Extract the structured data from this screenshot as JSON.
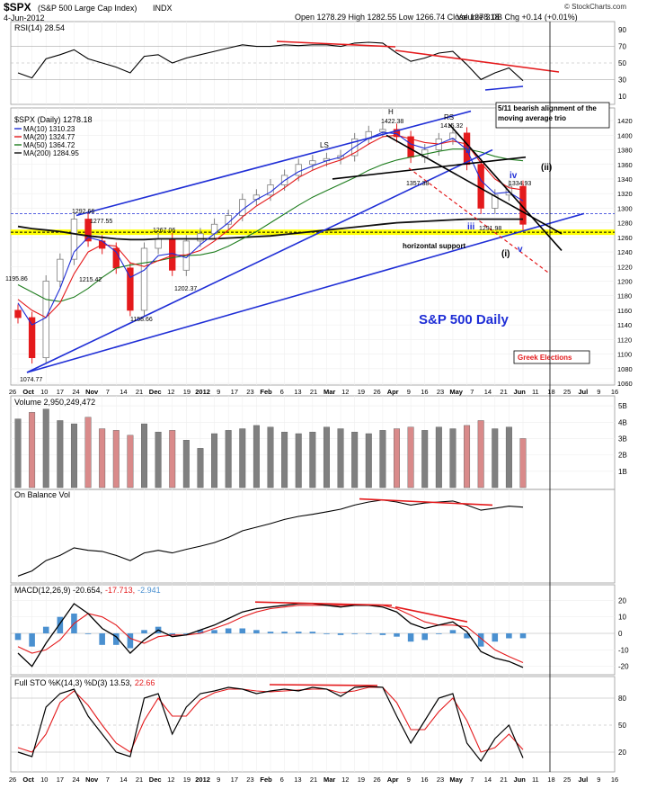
{
  "header": {
    "symbol": "$SPX",
    "name": "(S&P 500 Large Cap Index)",
    "exchange": "INDX",
    "date": "4-Jun-2012",
    "ohlc": "Open 1278.29  High 1282.55  Low 1266.74  Close 1278.18",
    "volume": "Volume 3.0B  Chg +0.14 (+0.01%)",
    "watermark": "© StockCharts.com"
  },
  "colors": {
    "up": "#7f7f7f",
    "down": "#e41a1c",
    "ma10": "#1f2ed6",
    "ma20": "#e41a1c",
    "ma50": "#1e7d1e",
    "ma200": "#111111",
    "trend_blue": "#1f2ed6",
    "support_yellow": "#ffff00",
    "vol_up": "#808080",
    "vol_down": "#d98a8a",
    "hist": "#4a90d0"
  },
  "rsi_panel": {
    "label": "RSI(14) 28.54",
    "ticks": [
      "90",
      "70",
      "50",
      "30",
      "10"
    ]
  },
  "price_panel": {
    "legend": {
      "title": "$SPX (Daily) 1278.18",
      "ma10": "MA(10) 1310.23",
      "ma20": "MA(20) 1324.77",
      "ma50": "MA(50) 1364.72",
      "ma200": "MA(200) 1284.95"
    },
    "yticks": [
      "1420",
      "1400",
      "1380",
      "1360",
      "1340",
      "1320",
      "1300",
      "1280",
      "1260",
      "1240",
      "1220",
      "1200",
      "1180",
      "1160",
      "1140",
      "1120",
      "1100",
      "1080",
      "1060"
    ],
    "annotations": {
      "p1074": "1074.77",
      "p1195": "1195.86",
      "p1292": "1292.66",
      "p1277": "1277.55",
      "p1215": "1215.42",
      "p1158": "1158.66",
      "p1267": "1267.06",
      "p1202": "1202.37",
      "p1422": "1422.38",
      "p1415": "1415.32",
      "p1357": "1357.38",
      "p1334": "1334.93",
      "p1291": "1291.98",
      "H": "H",
      "LS": "LS",
      "RS": "RS",
      "ii": "ii",
      "iii": "iii",
      "iv": "iv",
      "v": "v",
      "i_paren": "(i)",
      "ii_paren": "(ii)",
      "callout": "5/11 bearish alignment of the moving average trio",
      "horizontal_support": "horizontal support",
      "sp500": "S&P 500 Daily",
      "greek": "Greek Elections"
    },
    "xlabels": [
      "26",
      "Oct",
      "10",
      "17",
      "24",
      "Nov",
      "7",
      "14",
      "21",
      "Dec",
      "12",
      "19",
      "2012",
      "9",
      "17",
      "23",
      "Feb",
      "6",
      "13",
      "21",
      "Mar",
      "12",
      "19",
      "26",
      "Apr",
      "9",
      "16",
      "23",
      "May",
      "7",
      "14",
      "21",
      "Jun",
      "11",
      "18",
      "25",
      "Jul",
      "9",
      "16"
    ]
  },
  "volume_panel": {
    "label": "Volume 2,950,249,472",
    "ticks": [
      "5B",
      "4B",
      "3B",
      "2B",
      "1B"
    ]
  },
  "obv_panel": {
    "label": "On Balance Vol"
  },
  "macd_panel": {
    "label_prefix": "MACD(12,26,9) -20.654,",
    "label_signal": "-17.713,",
    "label_hist": "-2.941",
    "ticks": [
      "20",
      "10",
      "0",
      "-10",
      "-20"
    ]
  },
  "sto_panel": {
    "label_prefix": "Full STO %K(14,3) %D(3) 13.53,",
    "label_d": "22.66",
    "ticks": [
      "80",
      "50",
      "20"
    ]
  },
  "chart_data": {
    "type": "line",
    "title": "$SPX (S&P 500 Large Cap Index) Daily",
    "x": [
      "2011-09-26",
      "2011-10-03",
      "2011-10-10",
      "2011-10-17",
      "2011-10-24",
      "2011-10-31",
      "2011-11-07",
      "2011-11-14",
      "2011-11-21",
      "2011-11-28",
      "2011-12-05",
      "2011-12-12",
      "2011-12-19",
      "2011-12-27",
      "2012-01-03",
      "2012-01-09",
      "2012-01-17",
      "2012-01-23",
      "2012-01-30",
      "2012-02-06",
      "2012-02-13",
      "2012-02-21",
      "2012-02-27",
      "2012-03-05",
      "2012-03-12",
      "2012-03-19",
      "2012-03-26",
      "2012-04-02",
      "2012-04-09",
      "2012-04-16",
      "2012-04-23",
      "2012-04-30",
      "2012-05-07",
      "2012-05-14",
      "2012-05-21",
      "2012-05-29",
      "2012-06-04"
    ],
    "series": [
      {
        "name": "$SPX",
        "values": [
          1150,
          1095,
          1200,
          1230,
          1285,
          1255,
          1245,
          1218,
          1160,
          1245,
          1258,
          1215,
          1255,
          1265,
          1278,
          1290,
          1312,
          1318,
          1332,
          1345,
          1360,
          1365,
          1368,
          1372,
          1395,
          1405,
          1408,
          1398,
          1370,
          1380,
          1395,
          1403,
          1360,
          1300,
          1318,
          1330,
          1278
        ]
      },
      {
        "name": "MA(10)",
        "values": [
          1170,
          1140,
          1150,
          1190,
          1240,
          1260,
          1255,
          1240,
          1205,
          1215,
          1235,
          1238,
          1232,
          1250,
          1265,
          1280,
          1298,
          1312,
          1322,
          1338,
          1350,
          1358,
          1365,
          1370,
          1384,
          1396,
          1404,
          1402,
          1388,
          1382,
          1388,
          1396,
          1380,
          1338,
          1320,
          1322,
          1310
        ]
      },
      {
        "name": "MA(20)",
        "values": [
          1175,
          1160,
          1150,
          1170,
          1210,
          1240,
          1250,
          1248,
          1225,
          1220,
          1228,
          1235,
          1236,
          1242,
          1255,
          1270,
          1288,
          1303,
          1315,
          1328,
          1342,
          1352,
          1360,
          1366,
          1376,
          1388,
          1398,
          1400,
          1395,
          1390,
          1388,
          1392,
          1388,
          1362,
          1340,
          1328,
          1325
        ]
      },
      {
        "name": "MA(50)",
        "values": [
          1195,
          1185,
          1175,
          1172,
          1178,
          1190,
          1205,
          1218,
          1222,
          1225,
          1228,
          1232,
          1235,
          1236,
          1240,
          1248,
          1258,
          1268,
          1280,
          1292,
          1304,
          1315,
          1324,
          1333,
          1342,
          1352,
          1360,
          1366,
          1370,
          1374,
          1378,
          1381,
          1381,
          1377,
          1371,
          1367,
          1365
        ]
      },
      {
        "name": "MA(200)",
        "values": [
          1275,
          1272,
          1270,
          1268,
          1265,
          1262,
          1260,
          1258,
          1257,
          1257,
          1258,
          1258,
          1258,
          1258,
          1258,
          1259,
          1260,
          1261,
          1262,
          1264,
          1266,
          1268,
          1270,
          1272,
          1274,
          1276,
          1278,
          1280,
          1281,
          1282,
          1283,
          1284,
          1285,
          1285,
          1285,
          1285,
          1285
        ]
      }
    ],
    "ylim": [
      1060,
      1430
    ],
    "support_level": 1267,
    "resistance_level": 1292.66,
    "volume_b": [
      4.2,
      4.6,
      4.8,
      4.1,
      3.9,
      4.3,
      3.6,
      3.5,
      3.2,
      3.9,
      3.4,
      3.5,
      2.9,
      2.4,
      3.3,
      3.5,
      3.6,
      3.8,
      3.7,
      3.4,
      3.3,
      3.4,
      3.7,
      3.6,
      3.4,
      3.3,
      3.5,
      3.6,
      3.7,
      3.5,
      3.7,
      3.6,
      3.8,
      4.1,
      3.6,
      3.7,
      3.0
    ],
    "obv": [
      -40,
      -30,
      -10,
      0,
      15,
      10,
      8,
      0,
      -10,
      5,
      10,
      5,
      12,
      18,
      25,
      35,
      48,
      55,
      62,
      70,
      76,
      80,
      85,
      90,
      98,
      104,
      108,
      104,
      98,
      102,
      104,
      106,
      98,
      88,
      92,
      96,
      94
    ],
    "macd": [
      -12,
      -20,
      -6,
      6,
      18,
      12,
      3,
      -2,
      -12,
      -4,
      2,
      -2,
      -1,
      2,
      5,
      9,
      13,
      15,
      16,
      17,
      18,
      18,
      17,
      16,
      17,
      17,
      16,
      13,
      6,
      3,
      5,
      7,
      1,
      -11,
      -15,
      -17,
      -20.654
    ],
    "macd_signal": [
      -8,
      -12,
      -10,
      -4,
      6,
      12,
      10,
      5,
      -3,
      -6,
      -2,
      -1,
      -1,
      0,
      3,
      6,
      10,
      13,
      15,
      16,
      17,
      17,
      17,
      17,
      17,
      17,
      17,
      15,
      11,
      7,
      5,
      5,
      4,
      -3,
      -10,
      -14,
      -17.713
    ],
    "sto_k": [
      20,
      15,
      70,
      85,
      90,
      60,
      40,
      20,
      15,
      80,
      85,
      40,
      70,
      85,
      88,
      92,
      90,
      85,
      88,
      90,
      88,
      92,
      90,
      82,
      92,
      93,
      92,
      60,
      30,
      55,
      80,
      85,
      30,
      10,
      35,
      50,
      13.53
    ],
    "sto_d": [
      25,
      20,
      40,
      75,
      88,
      72,
      50,
      30,
      20,
      55,
      80,
      60,
      60,
      78,
      86,
      90,
      90,
      88,
      87,
      88,
      89,
      90,
      90,
      86,
      88,
      92,
      92,
      75,
      45,
      45,
      65,
      80,
      55,
      20,
      25,
      40,
      22.66
    ],
    "rsi": [
      38,
      32,
      55,
      60,
      66,
      55,
      50,
      45,
      38,
      58,
      60,
      50,
      56,
      60,
      64,
      68,
      72,
      70,
      70,
      72,
      71,
      72,
      72,
      70,
      74,
      75,
      74,
      62,
      52,
      56,
      62,
      64,
      48,
      30,
      38,
      44,
      28.54
    ]
  }
}
